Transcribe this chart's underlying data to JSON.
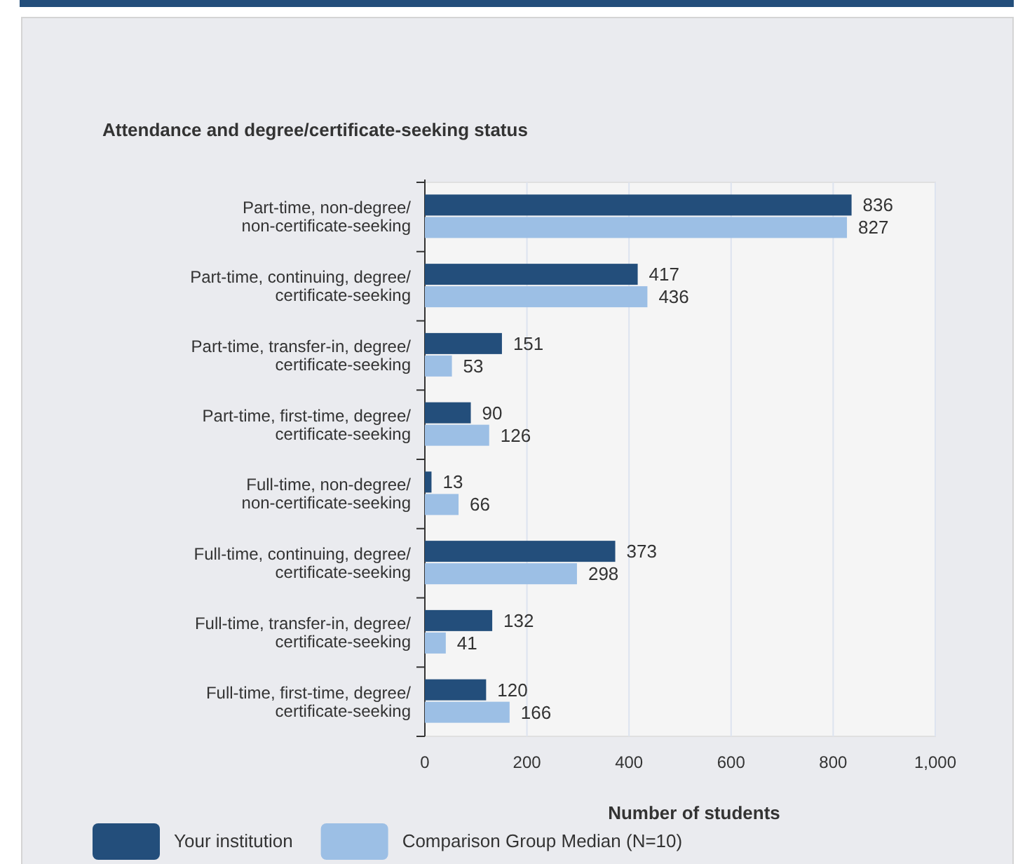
{
  "chart_data": {
    "type": "bar",
    "orientation": "horizontal",
    "title": "Attendance and degree/certificate-seeking status",
    "xlabel": "Number of students",
    "categories": [
      "Part-time, non-degree/ non-certificate-seeking",
      "Part-time, continuing, degree/ certificate-seeking",
      "Part-time, transfer-in, degree/ certificate-seeking",
      "Part-time, first-time, degree/ certificate-seeking",
      "Full-time, non-degree/ non-certificate-seeking",
      "Full-time, continuing, degree/ certificate-seeking",
      "Full-time, transfer-in, degree/ certificate-seeking",
      "Full-time, first-time, degree/ certificate-seeking"
    ],
    "series": [
      {
        "name": "Your institution",
        "color": "#234e7b",
        "values": [
          836,
          417,
          151,
          90,
          13,
          373,
          132,
          120
        ]
      },
      {
        "name": "Comparison Group Median (N=10)",
        "color": "#9cbfe5",
        "values": [
          827,
          436,
          53,
          126,
          66,
          298,
          41,
          166
        ]
      }
    ],
    "xlim": [
      0,
      1000
    ],
    "xticks": [
      0,
      200,
      400,
      600,
      800,
      {
        "value": 1000,
        "label": "1,000"
      }
    ],
    "grid": "x",
    "data_labels": true,
    "legend": "bottom"
  }
}
